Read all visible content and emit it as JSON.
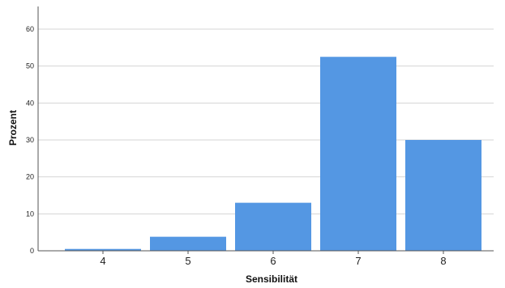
{
  "chart_data": {
    "type": "bar",
    "categories": [
      "4",
      "5",
      "6",
      "7",
      "8"
    ],
    "values": [
      0.5,
      3.8,
      13.0,
      52.5,
      30.0
    ],
    "xlabel": "Sensibilität",
    "ylabel": "Prozent",
    "ylim": [
      0,
      65
    ],
    "yticks": [
      0,
      10,
      20,
      30,
      40,
      50,
      60
    ],
    "grid": true,
    "bar_color": "#5497e3"
  }
}
